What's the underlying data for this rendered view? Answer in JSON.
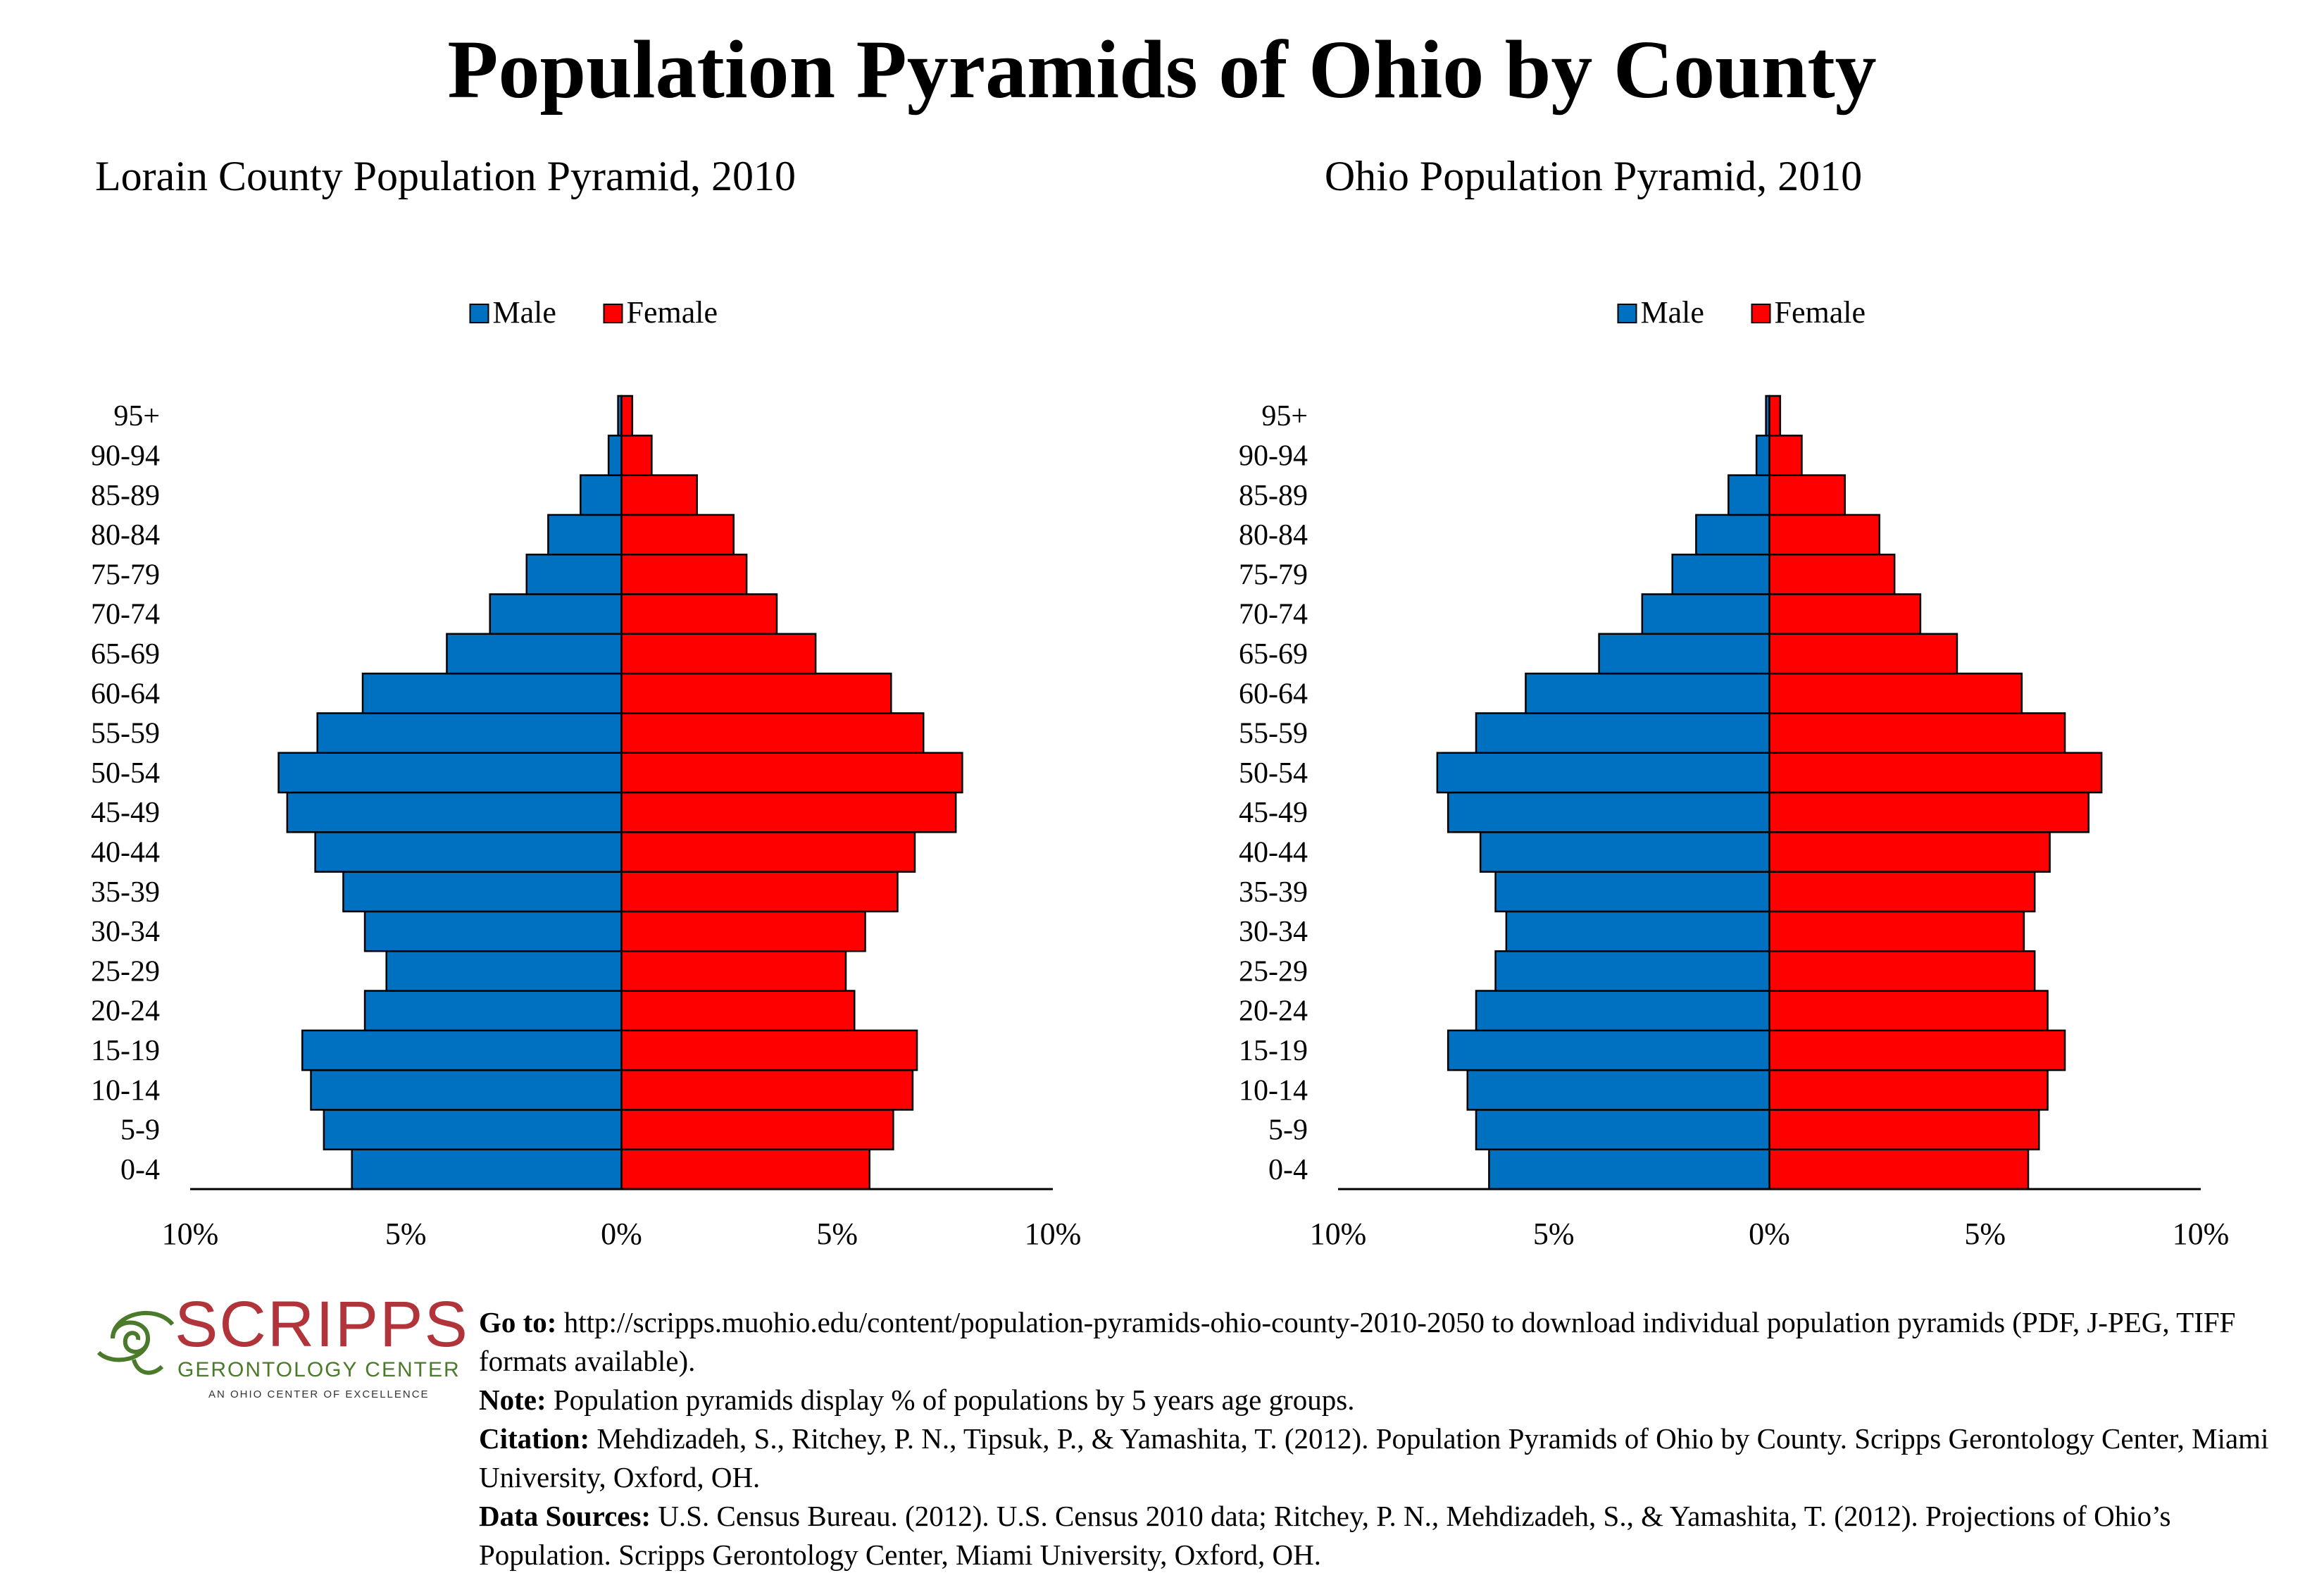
{
  "title": "Population Pyramids of Ohio by County",
  "chart_data": [
    {
      "type": "bar",
      "title": "Lorain County Population Pyramid, 2010",
      "legend": [
        "Male",
        "Female"
      ],
      "legend_position": "top-center",
      "categories": [
        "0-4",
        "5-9",
        "10-14",
        "15-19",
        "20-24",
        "25-29",
        "30-34",
        "35-39",
        "40-44",
        "45-49",
        "50-54",
        "55-59",
        "60-64",
        "65-69",
        "70-74",
        "75-79",
        "80-84",
        "85-89",
        "90-94",
        "95+"
      ],
      "series": [
        {
          "name": "Male",
          "values": [
            6.25,
            6.9,
            7.2,
            7.4,
            5.95,
            5.45,
            5.95,
            6.45,
            7.1,
            7.75,
            7.95,
            7.05,
            6.0,
            4.05,
            3.05,
            2.2,
            1.7,
            0.95,
            0.3,
            0.08
          ]
        },
        {
          "name": "Female",
          "values": [
            5.75,
            6.3,
            6.75,
            6.85,
            5.4,
            5.2,
            5.65,
            6.4,
            6.8,
            7.75,
            7.9,
            7.0,
            6.25,
            4.5,
            3.6,
            2.9,
            2.6,
            1.75,
            0.7,
            0.25
          ]
        }
      ],
      "xlim": [
        -10,
        10
      ],
      "x_ticks": [
        "10%",
        "5%",
        "0%",
        "5%",
        "10%"
      ],
      "colors": {
        "Male": "#0070c0",
        "Female": "#ff0000"
      },
      "grid": false
    },
    {
      "type": "bar",
      "title": "Ohio Population Pyramid, 2010",
      "legend": [
        "Male",
        "Female"
      ],
      "legend_position": "top-center",
      "categories": [
        "0-4",
        "5-9",
        "10-14",
        "15-19",
        "20-24",
        "25-29",
        "30-34",
        "35-39",
        "40-44",
        "45-49",
        "50-54",
        "55-59",
        "60-64",
        "65-69",
        "70-74",
        "75-79",
        "80-84",
        "85-89",
        "90-94",
        "95+"
      ],
      "series": [
        {
          "name": "Male",
          "values": [
            6.5,
            6.8,
            7.0,
            7.45,
            6.8,
            6.35,
            6.1,
            6.35,
            6.7,
            7.45,
            7.7,
            6.8,
            5.65,
            3.95,
            2.95,
            2.25,
            1.7,
            0.95,
            0.3,
            0.08
          ]
        },
        {
          "name": "Female",
          "values": [
            6.0,
            6.25,
            6.45,
            6.85,
            6.45,
            6.15,
            5.9,
            6.15,
            6.5,
            7.4,
            7.7,
            6.85,
            5.85,
            4.35,
            3.5,
            2.9,
            2.55,
            1.75,
            0.75,
            0.25
          ]
        }
      ],
      "xlim": [
        -10,
        10
      ],
      "x_ticks": [
        "10%",
        "5%",
        "0%",
        "5%",
        "10%"
      ],
      "colors": {
        "Male": "#0070c0",
        "Female": "#ff0000"
      },
      "grid": false
    }
  ],
  "logo": {
    "name": "SCRIPPS",
    "subtitle": "GERONTOLOGY CENTER",
    "tagline": "AN OHIO CENTER OF EXCELLENCE"
  },
  "notes": {
    "goto_label": "Go to:",
    "goto_text": " http://scripps.muohio.edu/content/population-pyramids-ohio-county-2010-2050 to download individual population pyramids (PDF, J-PEG, TIFF formats available).",
    "note_label": "Note:",
    "note_text": " Population pyramids display % of populations by 5 years age groups.",
    "citation_label": "Citation:",
    "citation_text": " Mehdizadeh, S., Ritchey, P. N., Tipsuk, P., & Yamashita, T. (2012). Population Pyramids of Ohio by County. Scripps Gerontology Center, Miami University, Oxford, OH.",
    "sources_label": "Data Sources:",
    "sources_text": " U.S. Census Bureau. (2012). U.S. Census 2010 data; Ritchey, P. N., Mehdizadeh, S., & Yamashita, T. (2012). Projections of Ohio’s Population. Scripps Gerontology Center, Miami University, Oxford, OH."
  }
}
